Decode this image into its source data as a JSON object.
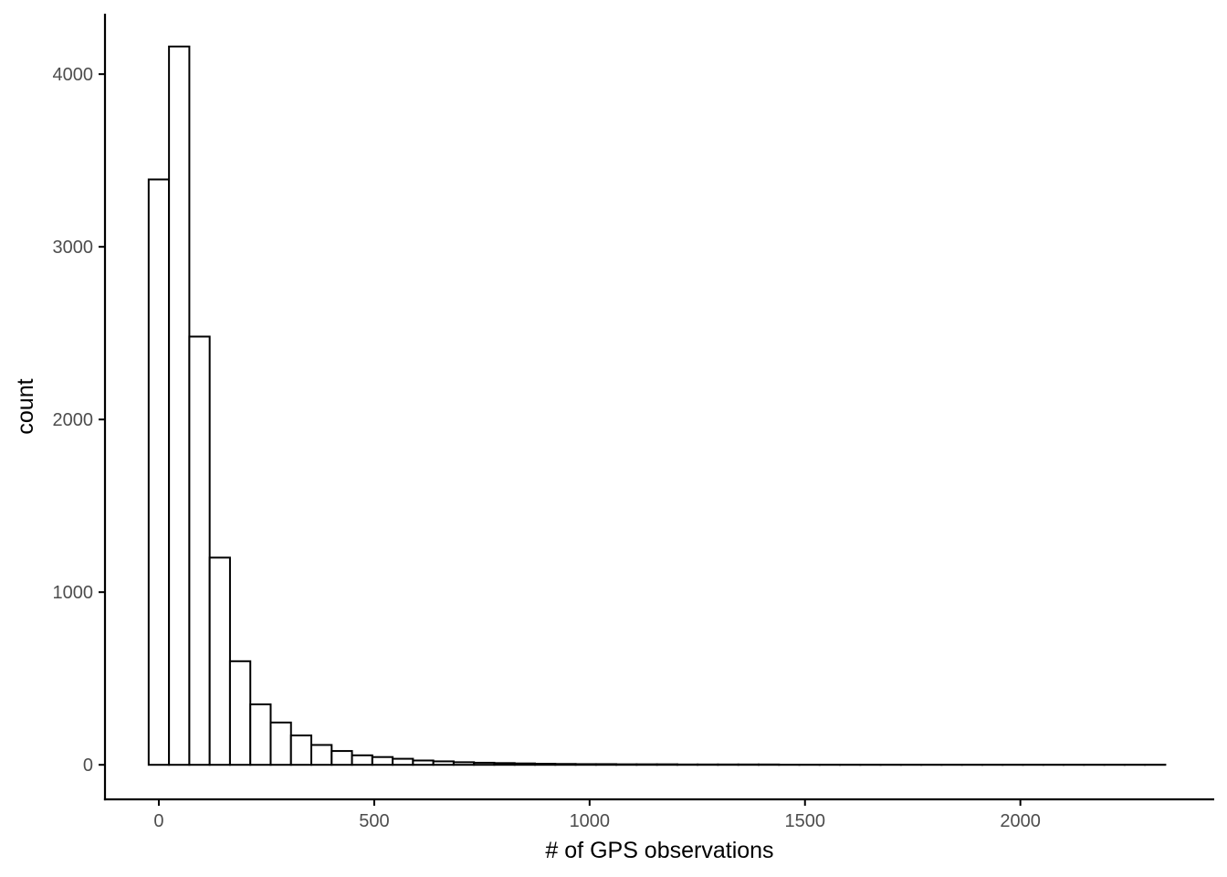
{
  "chart_data": {
    "type": "bar",
    "subtype": "histogram",
    "title": "",
    "xlabel": "# of GPS observations",
    "ylabel": "count",
    "xlim": [
      -125,
      2450
    ],
    "ylim": [
      -200,
      4350
    ],
    "x_ticks": [
      0,
      500,
      1000,
      1500,
      2000
    ],
    "x_tick_labels": [
      "0",
      "500",
      "1000",
      "1500",
      "2000"
    ],
    "y_ticks": [
      0,
      1000,
      2000,
      3000,
      4000
    ],
    "y_tick_labels": [
      "0",
      "1000",
      "2000",
      "3000",
      "4000"
    ],
    "grid": false,
    "legend": "none",
    "colors": {
      "bar_fill": "#ffffff",
      "bar_stroke": "#000000",
      "axis": "#000000",
      "tick_text": "#4d4d4d"
    },
    "bin_width": 47.2,
    "bin_start": -23.6,
    "values": [
      3390,
      4160,
      2480,
      1200,
      600,
      350,
      245,
      170,
      115,
      80,
      55,
      45,
      35,
      25,
      20,
      15,
      12,
      10,
      8,
      6,
      5,
      4,
      4,
      3,
      3,
      3,
      2,
      2,
      2,
      2,
      2,
      1,
      1,
      1,
      1,
      1,
      1,
      1,
      1,
      1,
      1,
      1,
      1,
      1,
      1,
      1,
      1,
      1,
      1,
      1
    ]
  }
}
